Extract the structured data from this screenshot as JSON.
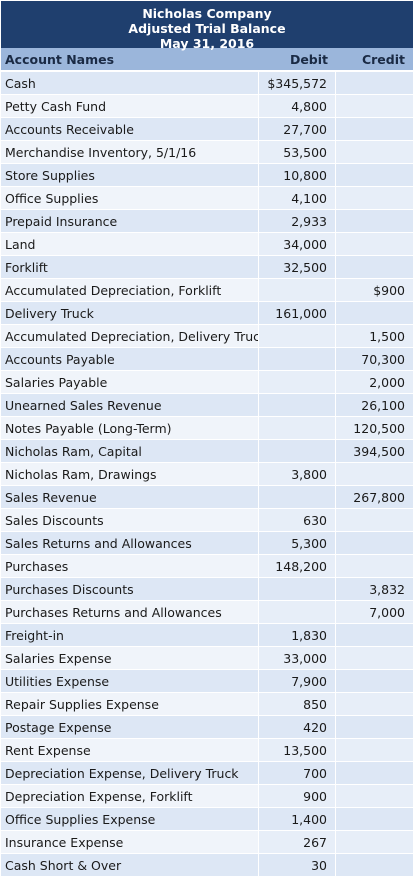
{
  "header": {
    "company": "Nicholas Company",
    "statement": "Adjusted Trial Balance",
    "date": "May 31, 2016"
  },
  "columns": {
    "name": "Account Names",
    "debit": "Debit",
    "credit": "Credit"
  },
  "rows": [
    {
      "name": "Cash",
      "debit": "$345,572",
      "credit": ""
    },
    {
      "name": "Petty Cash Fund",
      "debit": "4,800",
      "credit": ""
    },
    {
      "name": "Accounts Receivable",
      "debit": "27,700",
      "credit": ""
    },
    {
      "name": "Merchandise Inventory, 5/1/16",
      "debit": "53,500",
      "credit": ""
    },
    {
      "name": "Store Supplies",
      "debit": "10,800",
      "credit": ""
    },
    {
      "name": "Office Supplies",
      "debit": "4,100",
      "credit": ""
    },
    {
      "name": "Prepaid Insurance",
      "debit": "2,933",
      "credit": ""
    },
    {
      "name": "Land",
      "debit": "34,000",
      "credit": ""
    },
    {
      "name": "Forklift",
      "debit": "32,500",
      "credit": ""
    },
    {
      "name": "Accumulated Depreciation, Forklift",
      "debit": "",
      "credit": "$900"
    },
    {
      "name": "Delivery Truck",
      "debit": "161,000",
      "credit": ""
    },
    {
      "name": "Accumulated Depreciation, Delivery Truck",
      "debit": "",
      "credit": "1,500"
    },
    {
      "name": "Accounts Payable",
      "debit": "",
      "credit": "70,300"
    },
    {
      "name": "Salaries Payable",
      "debit": "",
      "credit": "2,000"
    },
    {
      "name": "Unearned Sales Revenue",
      "debit": "",
      "credit": "26,100"
    },
    {
      "name": "Notes Payable (Long-Term)",
      "debit": "",
      "credit": "120,500"
    },
    {
      "name": "Nicholas Ram, Capital",
      "debit": "",
      "credit": "394,500"
    },
    {
      "name": "Nicholas Ram, Drawings",
      "debit": "3,800",
      "credit": ""
    },
    {
      "name": "Sales Revenue",
      "debit": "",
      "credit": "267,800"
    },
    {
      "name": "Sales Discounts",
      "debit": "630",
      "credit": ""
    },
    {
      "name": "Sales Returns and Allowances",
      "debit": "5,300",
      "credit": ""
    },
    {
      "name": "Purchases",
      "debit": "148,200",
      "credit": ""
    },
    {
      "name": "Purchases Discounts",
      "debit": "",
      "credit": "3,832"
    },
    {
      "name": "Purchases Returns and Allowances",
      "debit": "",
      "credit": "7,000"
    },
    {
      "name": "Freight-in",
      "debit": "1,830",
      "credit": ""
    },
    {
      "name": "Salaries Expense",
      "debit": "33,000",
      "credit": ""
    },
    {
      "name": "Utilities Expense",
      "debit": "7,900",
      "credit": ""
    },
    {
      "name": "Repair Supplies Expense",
      "debit": "850",
      "credit": ""
    },
    {
      "name": "Postage Expense",
      "debit": "420",
      "credit": ""
    },
    {
      "name": "Rent Expense",
      "debit": "13,500",
      "credit": ""
    },
    {
      "name": "Depreciation Expense, Delivery Truck",
      "debit": "700",
      "credit": ""
    },
    {
      "name": "Depreciation Expense, Forklift",
      "debit": "900",
      "credit": ""
    },
    {
      "name": "Office Supplies Expense",
      "debit": "1,400",
      "credit": ""
    },
    {
      "name": "Insurance Expense",
      "debit": "267",
      "credit": ""
    },
    {
      "name": "Cash Short & Over",
      "debit": "30",
      "credit": ""
    }
  ],
  "colors": {
    "header_bg": "#1f3f6e",
    "column_header_bg": "#9bb6db",
    "row_odd": "#dde7f5",
    "row_even": "#f0f4fa"
  }
}
